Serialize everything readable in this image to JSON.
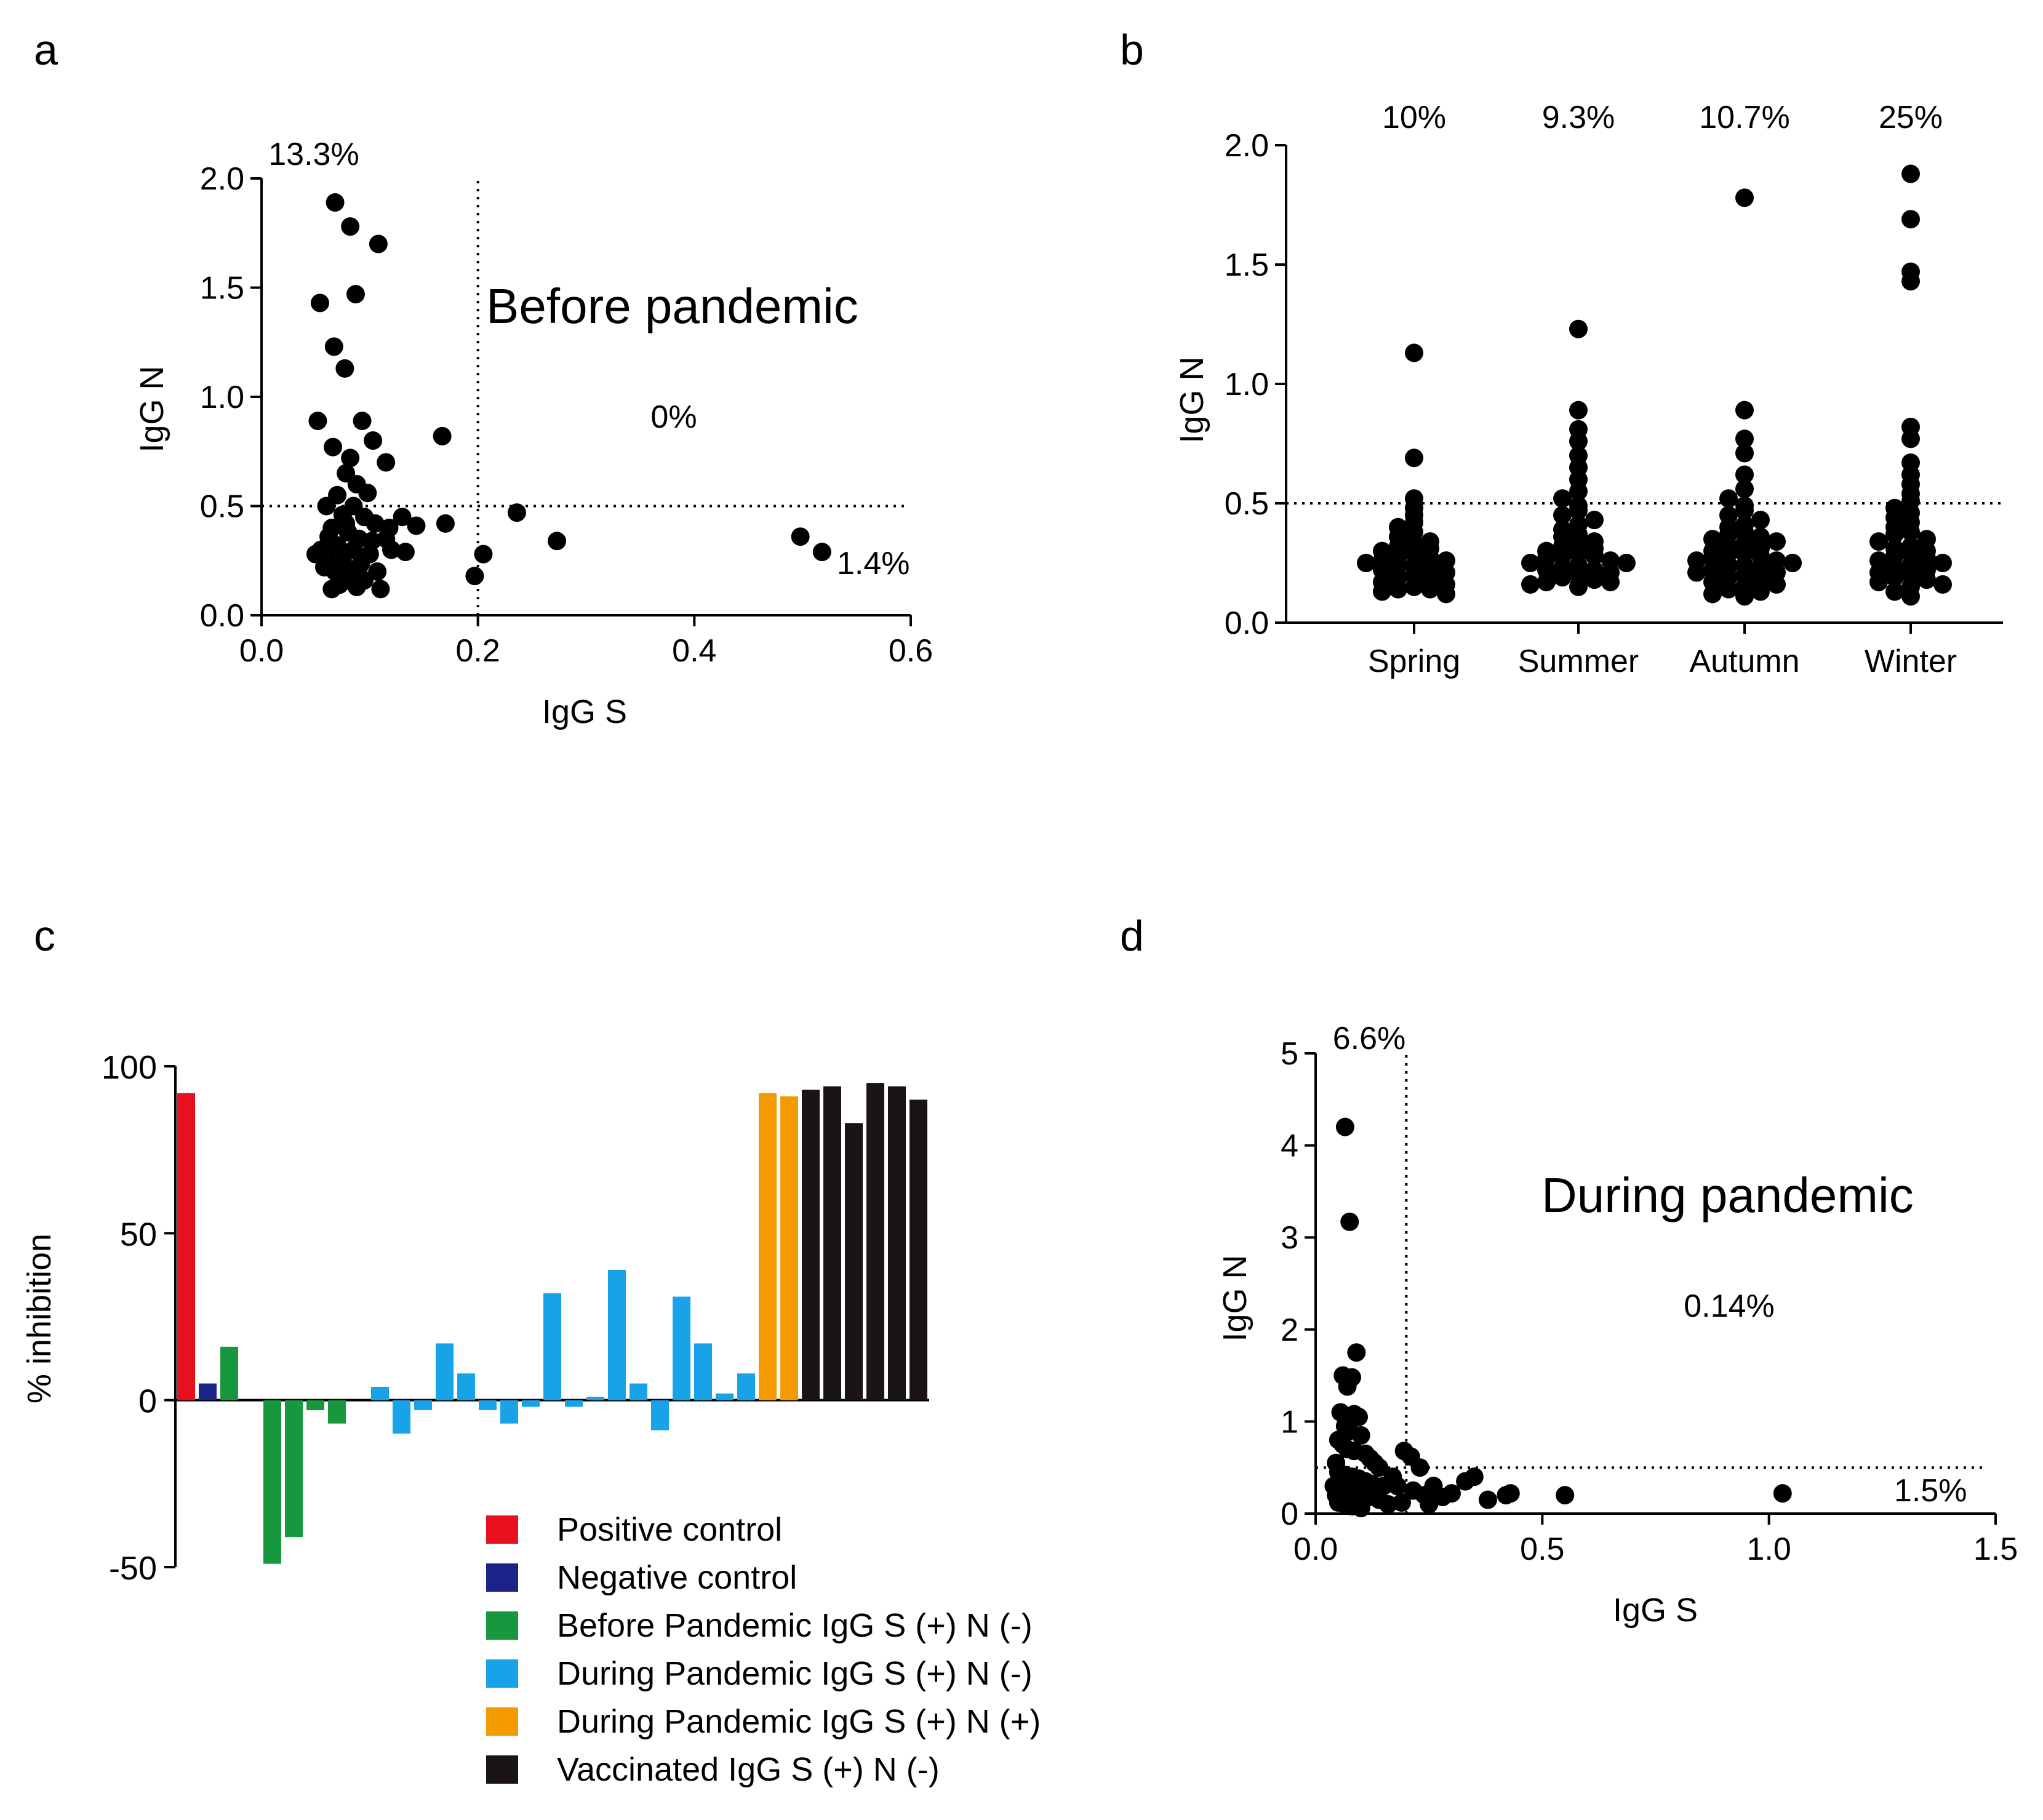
{
  "figure": {
    "panels": [
      {
        "label": "a"
      },
      {
        "label": "b"
      },
      {
        "label": "c"
      },
      {
        "label": "d"
      }
    ]
  },
  "chart_data": [
    {
      "id": "a",
      "type": "scatter",
      "title": "Before pandemic",
      "xlabel": "IgG S",
      "ylabel": "IgG N",
      "xlim": [
        0,
        0.6
      ],
      "ylim": [
        0,
        2.0
      ],
      "xticks": [
        "0.0",
        "0.2",
        "0.4",
        "0.6"
      ],
      "yticks": [
        "0.0",
        "0.5",
        "1.0",
        "1.5",
        "2.0"
      ],
      "thresholds": {
        "x": 0.2,
        "y": 0.5
      },
      "quadrant_labels": {
        "upper_left": "13.3%",
        "upper_right": "0%",
        "lower_right": "1.4%"
      },
      "points": [
        [
          0.068,
          1.89
        ],
        [
          0.082,
          1.78
        ],
        [
          0.108,
          1.7
        ],
        [
          0.087,
          1.47
        ],
        [
          0.054,
          1.43
        ],
        [
          0.067,
          1.23
        ],
        [
          0.077,
          1.13
        ],
        [
          0.052,
          0.89
        ],
        [
          0.093,
          0.89
        ],
        [
          0.103,
          0.8
        ],
        [
          0.167,
          0.82
        ],
        [
          0.082,
          0.72
        ],
        [
          0.115,
          0.7
        ],
        [
          0.066,
          0.77
        ],
        [
          0.078,
          0.65
        ],
        [
          0.088,
          0.6
        ],
        [
          0.098,
          0.56
        ],
        [
          0.07,
          0.55
        ],
        [
          0.085,
          0.5
        ],
        [
          0.06,
          0.5
        ],
        [
          0.075,
          0.46
        ],
        [
          0.095,
          0.45
        ],
        [
          0.105,
          0.42
        ],
        [
          0.065,
          0.4
        ],
        [
          0.08,
          0.38
        ],
        [
          0.09,
          0.35
        ],
        [
          0.07,
          0.32
        ],
        [
          0.085,
          0.3
        ],
        [
          0.1,
          0.28
        ],
        [
          0.06,
          0.27
        ],
        [
          0.075,
          0.25
        ],
        [
          0.09,
          0.22
        ],
        [
          0.068,
          0.2
        ],
        [
          0.08,
          0.18
        ],
        [
          0.095,
          0.16
        ],
        [
          0.072,
          0.14
        ],
        [
          0.088,
          0.13
        ],
        [
          0.065,
          0.12
        ],
        [
          0.11,
          0.12
        ],
        [
          0.055,
          0.3
        ],
        [
          0.05,
          0.28
        ],
        [
          0.115,
          0.35
        ],
        [
          0.12,
          0.3
        ],
        [
          0.118,
          0.4
        ],
        [
          0.13,
          0.45
        ],
        [
          0.133,
          0.29
        ],
        [
          0.143,
          0.41
        ],
        [
          0.17,
          0.42
        ],
        [
          0.197,
          0.18
        ],
        [
          0.205,
          0.28
        ],
        [
          0.236,
          0.47
        ],
        [
          0.273,
          0.34
        ],
        [
          0.498,
          0.36
        ],
        [
          0.518,
          0.29
        ],
        [
          0.078,
          0.42
        ],
        [
          0.062,
          0.36
        ],
        [
          0.092,
          0.24
        ],
        [
          0.102,
          0.34
        ],
        [
          0.058,
          0.22
        ],
        [
          0.107,
          0.2
        ]
      ]
    },
    {
      "id": "b",
      "type": "scatter",
      "xlabel": "",
      "ylabel": "IgG N",
      "ylim": [
        0,
        2.0
      ],
      "yticks": [
        "0.0",
        "0.5",
        "1.0",
        "1.5",
        "2.0"
      ],
      "categories": [
        "Spring",
        "Summer",
        "Autumn",
        "Winter"
      ],
      "percent_labels": [
        "10%",
        "9.3%",
        "10.7%",
        "25%"
      ],
      "threshold": 0.5,
      "series": [
        {
          "name": "Spring",
          "values": [
            1.13,
            0.69,
            0.52,
            0.48,
            0.45,
            0.42,
            0.4,
            0.38,
            0.36,
            0.34,
            0.33,
            0.32,
            0.31,
            0.3,
            0.29,
            0.28,
            0.27,
            0.26,
            0.26,
            0.25,
            0.24,
            0.24,
            0.23,
            0.22,
            0.21,
            0.2,
            0.19,
            0.18,
            0.17,
            0.16,
            0.15,
            0.14,
            0.14,
            0.13,
            0.12
          ]
        },
        {
          "name": "Summer",
          "values": [
            1.23,
            0.89,
            0.81,
            0.76,
            0.7,
            0.65,
            0.6,
            0.55,
            0.52,
            0.49,
            0.47,
            0.45,
            0.43,
            0.41,
            0.39,
            0.37,
            0.36,
            0.34,
            0.33,
            0.32,
            0.31,
            0.3,
            0.29,
            0.28,
            0.28,
            0.27,
            0.26,
            0.25,
            0.25,
            0.24,
            0.23,
            0.22,
            0.22,
            0.21,
            0.2,
            0.19,
            0.18,
            0.17,
            0.17,
            0.16,
            0.15
          ]
        },
        {
          "name": "Autumn",
          "values": [
            1.78,
            0.89,
            0.77,
            0.71,
            0.62,
            0.56,
            0.52,
            0.49,
            0.47,
            0.45,
            0.43,
            0.41,
            0.4,
            0.38,
            0.37,
            0.36,
            0.35,
            0.34,
            0.33,
            0.32,
            0.31,
            0.3,
            0.29,
            0.29,
            0.28,
            0.27,
            0.26,
            0.26,
            0.25,
            0.24,
            0.24,
            0.23,
            0.22,
            0.21,
            0.21,
            0.2,
            0.19,
            0.18,
            0.17,
            0.16,
            0.15,
            0.14,
            0.13,
            0.12,
            0.11
          ]
        },
        {
          "name": "Winter",
          "values": [
            1.88,
            1.69,
            1.47,
            1.43,
            0.82,
            0.77,
            0.67,
            0.62,
            0.58,
            0.54,
            0.51,
            0.48,
            0.46,
            0.44,
            0.42,
            0.4,
            0.38,
            0.37,
            0.35,
            0.34,
            0.32,
            0.31,
            0.3,
            0.29,
            0.28,
            0.27,
            0.26,
            0.25,
            0.24,
            0.23,
            0.22,
            0.21,
            0.2,
            0.19,
            0.18,
            0.17,
            0.16,
            0.15,
            0.13,
            0.11
          ]
        }
      ]
    },
    {
      "id": "c",
      "type": "bar",
      "ylabel": "% inhibition",
      "ylim": [
        -50,
        100
      ],
      "yticks": [
        "100",
        "50",
        "0",
        "-50"
      ],
      "legend": [
        {
          "label": "Positive control",
          "color": "#e8101e"
        },
        {
          "label": "Negative control",
          "color": "#1c2489"
        },
        {
          "label": "Before Pandemic IgG S (+) N (-)",
          "color": "#17973e"
        },
        {
          "label": "During Pandemic IgG S (+) N (-)",
          "color": "#18a3e8"
        },
        {
          "label": "During Pandemic IgG S (+) N (+)",
          "color": "#f39a00"
        },
        {
          "label": "Vaccinated IgG S (+) N (-)",
          "color": "#1a1414"
        }
      ],
      "bars": [
        {
          "group": 0,
          "value": 92
        },
        {
          "group": 1,
          "value": 5
        },
        {
          "group": 2,
          "value": 16
        },
        {
          "group": 2,
          "value": 0
        },
        {
          "group": 2,
          "value": -49
        },
        {
          "group": 2,
          "value": -41
        },
        {
          "group": 2,
          "value": -3
        },
        {
          "group": 2,
          "value": -7
        },
        {
          "group": 3,
          "value": 0
        },
        {
          "group": 3,
          "value": 4
        },
        {
          "group": 3,
          "value": -10
        },
        {
          "group": 3,
          "value": -3
        },
        {
          "group": 3,
          "value": 17
        },
        {
          "group": 3,
          "value": 8
        },
        {
          "group": 3,
          "value": -3
        },
        {
          "group": 3,
          "value": -7
        },
        {
          "group": 3,
          "value": -2
        },
        {
          "group": 3,
          "value": 32
        },
        {
          "group": 3,
          "value": -2
        },
        {
          "group": 3,
          "value": 1
        },
        {
          "group": 3,
          "value": 39
        },
        {
          "group": 3,
          "value": 5
        },
        {
          "group": 3,
          "value": -9
        },
        {
          "group": 3,
          "value": 31
        },
        {
          "group": 3,
          "value": 17
        },
        {
          "group": 3,
          "value": 2
        },
        {
          "group": 3,
          "value": 8
        },
        {
          "group": 4,
          "value": 92
        },
        {
          "group": 4,
          "value": 91
        },
        {
          "group": 5,
          "value": 93
        },
        {
          "group": 5,
          "value": 94
        },
        {
          "group": 5,
          "value": 83
        },
        {
          "group": 5,
          "value": 95
        },
        {
          "group": 5,
          "value": 94
        },
        {
          "group": 5,
          "value": 90
        }
      ]
    },
    {
      "id": "d",
      "type": "scatter",
      "title": "During pandemic",
      "xlabel": "IgG S",
      "ylabel": "IgG N",
      "xlim": [
        0,
        1.5
      ],
      "ylim": [
        0,
        5
      ],
      "xticks": [
        "0.0",
        "0.5",
        "1.0",
        "1.5"
      ],
      "yticks": [
        "0",
        "1",
        "2",
        "3",
        "4",
        "5"
      ],
      "thresholds": {
        "x": 0.2,
        "y": 0.5
      },
      "quadrant_labels": {
        "upper_left": "6.6%",
        "upper_right": "0.14%",
        "lower_right": "1.5%"
      },
      "points": [
        [
          0.065,
          4.2
        ],
        [
          0.075,
          3.17
        ],
        [
          0.09,
          1.75
        ],
        [
          0.06,
          1.5
        ],
        [
          0.08,
          1.48
        ],
        [
          0.07,
          1.38
        ],
        [
          0.055,
          1.1
        ],
        [
          0.085,
          1.08
        ],
        [
          0.095,
          1.05
        ],
        [
          0.065,
          0.95
        ],
        [
          0.075,
          0.9
        ],
        [
          0.1,
          0.85
        ],
        [
          0.05,
          0.8
        ],
        [
          0.06,
          0.75
        ],
        [
          0.07,
          0.7
        ],
        [
          0.085,
          0.68
        ],
        [
          0.11,
          0.65
        ],
        [
          0.12,
          0.6
        ],
        [
          0.045,
          0.55
        ],
        [
          0.13,
          0.55
        ],
        [
          0.14,
          0.5
        ],
        [
          0.05,
          0.45
        ],
        [
          0.065,
          0.42
        ],
        [
          0.08,
          0.4
        ],
        [
          0.095,
          0.38
        ],
        [
          0.11,
          0.35
        ],
        [
          0.125,
          0.32
        ],
        [
          0.15,
          0.3
        ],
        [
          0.06,
          0.28
        ],
        [
          0.075,
          0.25
        ],
        [
          0.09,
          0.22
        ],
        [
          0.105,
          0.2
        ],
        [
          0.12,
          0.18
        ],
        [
          0.14,
          0.15
        ],
        [
          0.05,
          0.12
        ],
        [
          0.065,
          0.1
        ],
        [
          0.08,
          0.08
        ],
        [
          0.1,
          0.06
        ],
        [
          0.04,
          0.3
        ],
        [
          0.045,
          0.2
        ],
        [
          0.17,
          0.4
        ],
        [
          0.18,
          0.3
        ],
        [
          0.195,
          0.68
        ],
        [
          0.21,
          0.62
        ],
        [
          0.215,
          0.25
        ],
        [
          0.23,
          0.5
        ],
        [
          0.24,
          0.2
        ],
        [
          0.26,
          0.3
        ],
        [
          0.28,
          0.18
        ],
        [
          0.3,
          0.22
        ],
        [
          0.33,
          0.35
        ],
        [
          0.35,
          0.4
        ],
        [
          0.38,
          0.15
        ],
        [
          0.42,
          0.2
        ],
        [
          0.43,
          0.22
        ],
        [
          0.55,
          0.2
        ],
        [
          1.03,
          0.22
        ],
        [
          0.16,
          0.1
        ],
        [
          0.19,
          0.12
        ],
        [
          0.25,
          0.1
        ]
      ]
    }
  ]
}
